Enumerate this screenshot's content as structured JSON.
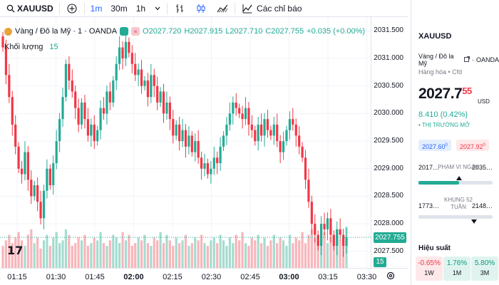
{
  "toolbar": {
    "symbol": "XAUUSD",
    "intervals": [
      "1m",
      "30m",
      "1h"
    ],
    "indicators_label": "Các chỉ báo"
  },
  "legend": {
    "title": "Vàng / Đô la Mỹ · 1 · OANDA",
    "open": "O2027.720",
    "high": "H2027.915",
    "low": "L2027.710",
    "close": "C2027.755",
    "change": "+0.035 (+0.00%)",
    "volume_label": "Khối lượng",
    "volume_value": "15"
  },
  "price_axis": {
    "labels": [
      "2031.500",
      "2031.000",
      "2030.500",
      "2030.000",
      "2029.500",
      "2029.000",
      "2028.500",
      "2028.000",
      "2027.500"
    ],
    "current_tag": "2027.755",
    "volume_tag": "15"
  },
  "time_axis": {
    "labels": [
      {
        "text": "01:15",
        "bold": false
      },
      {
        "text": "01:30",
        "bold": false
      },
      {
        "text": "01:45",
        "bold": false
      },
      {
        "text": "02:00",
        "bold": true
      },
      {
        "text": "02:15",
        "bold": false
      },
      {
        "text": "02:30",
        "bold": false
      },
      {
        "text": "02:45",
        "bold": false
      },
      {
        "text": "03:00",
        "bold": true
      },
      {
        "text": "03:15",
        "bold": false
      },
      {
        "text": "03:30",
        "bold": false
      }
    ]
  },
  "chart_data": {
    "type": "candlestick",
    "symbol": "XAUUSD",
    "ylim": [
      2027.2,
      2031.75
    ],
    "colors": {
      "up": "#22ab94",
      "down": "#f23645",
      "vol_up": "#a5dccf",
      "vol_down": "#f7b6bb"
    },
    "closes": [
      2031.2,
      2030.7,
      2030.3,
      2029.8,
      2029.4,
      2029.0,
      2028.9,
      2029.3,
      2028.8,
      2028.5,
      2028.7,
      2028.4,
      2028.1,
      2028.6,
      2029.0,
      2028.7,
      2029.1,
      2029.5,
      2029.9,
      2030.3,
      2030.9,
      2030.6,
      2030.4,
      2030.1,
      2029.8,
      2030.2,
      2029.9,
      2029.6,
      2029.8,
      2029.5,
      2029.7,
      2030.1,
      2030.0,
      2030.4,
      2030.2,
      2030.6,
      2030.9,
      2031.2,
      2031.0,
      2031.3,
      2031.1,
      2030.9,
      2030.7,
      2030.8,
      2030.5,
      2030.6,
      2030.3,
      2030.7,
      2030.5,
      2030.2,
      2030.4,
      2030.0,
      2030.2,
      2029.9,
      2029.6,
      2029.8,
      2029.5,
      2029.7,
      2029.4,
      2029.6,
      2029.3,
      2029.5,
      2029.2,
      2029.0,
      2029.1,
      2028.9,
      2029.0,
      2029.2,
      2029.1,
      2029.4,
      2029.6,
      2029.8,
      2030.0,
      2030.2,
      2030.1,
      2030.0,
      2029.9,
      2030.1,
      2029.8,
      2029.7,
      2029.5,
      2029.8,
      2029.6,
      2029.9,
      2029.7,
      2029.6,
      2029.8,
      2029.5,
      2029.3,
      2029.5,
      2029.7,
      2029.9,
      2029.8,
      2029.6,
      2029.4,
      2029.2,
      2028.8,
      2028.4,
      2028.0,
      2027.8,
      2027.6,
      2028.0,
      2027.9,
      2028.1,
      2027.8,
      2027.6,
      2027.9,
      2027.8,
      2027.6,
      2027.755
    ],
    "volumes": [
      8,
      10,
      12,
      9,
      11,
      13,
      10,
      8,
      12,
      14,
      9,
      11,
      7,
      10,
      12,
      8,
      11,
      13,
      9,
      10,
      14,
      12,
      8,
      9,
      11,
      10,
      12,
      8,
      9,
      11,
      10,
      13,
      9,
      8,
      10,
      12,
      11,
      9,
      13,
      10,
      12,
      8,
      9,
      11,
      10,
      12,
      9,
      8,
      11,
      10,
      13,
      9,
      12,
      10,
      8,
      11,
      9,
      10,
      12,
      8,
      9,
      11,
      10,
      12,
      9,
      8,
      10,
      11,
      9,
      12,
      10,
      8,
      11,
      9,
      12,
      10,
      13,
      9,
      8,
      11,
      10,
      12,
      9,
      11,
      8,
      10,
      12,
      9,
      11,
      10,
      8,
      12,
      9,
      11,
      10,
      13,
      9,
      12,
      14,
      11,
      10,
      12,
      13,
      9,
      11,
      12,
      14,
      10,
      12,
      15
    ]
  },
  "panel": {
    "symbol": "XAUUSD",
    "description": "Vàng / Đô la Mỹ",
    "exchange": "OANDA",
    "category": "Hàng hóa • Cfd",
    "price_main": "2027.7",
    "price_sup": "55",
    "currency": "USD",
    "change": "8.410 (0.42%)",
    "market_status": "• THỊ TRƯỜNG MỞ",
    "bid": "2027.60",
    "bid_sup": "0",
    "ask": "2027.92",
    "ask_sup": "0",
    "day_range": {
      "low": "2017…",
      "high": "2035…",
      "label": "PHẠM VI NGÀY",
      "position": 0.55
    },
    "year_range": {
      "low": "1773…",
      "high": "2148…",
      "label": "KHUNG 52 TUẦN",
      "position": 0.75
    },
    "performance_title": "Hiệu suất",
    "performance": [
      {
        "value": "-0.65%",
        "period": "1W",
        "sign": "neg"
      },
      {
        "value": "1.76%",
        "period": "1M",
        "sign": "pos"
      },
      {
        "value": "5.80%",
        "period": "3M",
        "sign": "pos"
      }
    ]
  }
}
